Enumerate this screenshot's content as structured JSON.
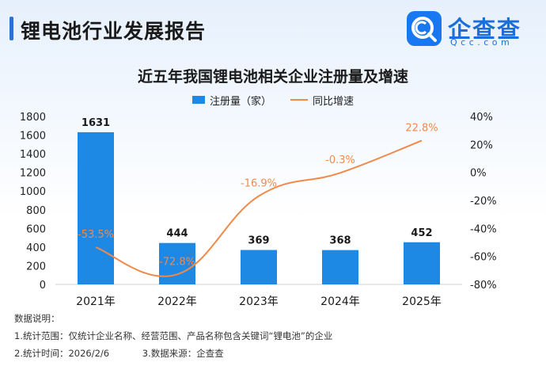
{
  "header": {
    "title": "锂电池行业发展报告",
    "brand": "企查查",
    "brand_sub": "Qcc.com"
  },
  "chart_data": {
    "type": "bar",
    "title": "近五年我国锂电池相关企业注册量及增速",
    "categories": [
      "2021年",
      "2022年",
      "2023年",
      "2024年",
      "2025年"
    ],
    "series": [
      {
        "name": "注册量（家）",
        "type": "bar",
        "axis": "left",
        "values": [
          1631,
          444,
          369,
          368,
          452
        ],
        "labels": [
          "1631",
          "444",
          "369",
          "368",
          "452"
        ],
        "color": "#1e88e5"
      },
      {
        "name": "同比增速",
        "type": "line",
        "axis": "right",
        "values": [
          -53.5,
          -72.8,
          -16.9,
          -0.3,
          22.8
        ],
        "labels": [
          "-53.5%",
          "-72.8%",
          "-16.9%",
          "-0.3%",
          "22.8%"
        ],
        "color": "#ef8a4b"
      }
    ],
    "y_left": {
      "min": 0,
      "max": 1800,
      "ticks": [
        "0",
        "200",
        "400",
        "600",
        "800",
        "1000",
        "1200",
        "1400",
        "1600",
        "1800"
      ]
    },
    "y_right": {
      "min": -80,
      "max": 40,
      "ticks": [
        "-80%",
        "-60%",
        "-40%",
        "-20%",
        "0%",
        "20%",
        "40%"
      ]
    },
    "grid": false,
    "legend_position": "top-center"
  },
  "notes": {
    "heading": "数据说明：",
    "scope": "1.统计范围：仅统计企业名称、经营范围、产品名称包含关键词“锂电池”的企业",
    "time": "2.统计时间：2026/2/6",
    "source": "3.数据来源：企查查"
  }
}
